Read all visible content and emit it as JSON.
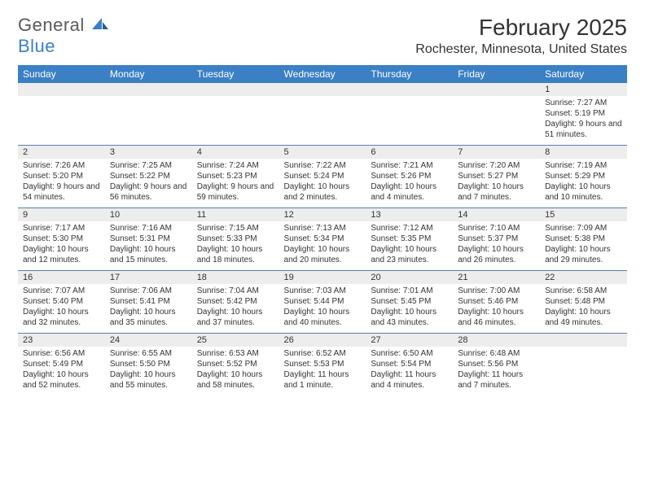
{
  "logo": {
    "text1": "General",
    "text2": "Blue"
  },
  "title": "February 2025",
  "location": "Rochester, Minnesota, United States",
  "weekdays": [
    "Sunday",
    "Monday",
    "Tuesday",
    "Wednesday",
    "Thursday",
    "Friday",
    "Saturday"
  ],
  "colors": {
    "header_bg": "#3b7fc4",
    "header_fg": "#ffffff",
    "daynum_bg": "#ededed",
    "row_border": "#5a7fa8",
    "text": "#333333",
    "logo_gray": "#5a5a5a",
    "logo_blue": "#3b7fc4"
  },
  "weeks": [
    [
      {
        "empty": true
      },
      {
        "empty": true
      },
      {
        "empty": true
      },
      {
        "empty": true
      },
      {
        "empty": true
      },
      {
        "empty": true
      },
      {
        "n": "1",
        "sunrise": "Sunrise: 7:27 AM",
        "sunset": "Sunset: 5:19 PM",
        "daylight": "Daylight: 9 hours and 51 minutes."
      }
    ],
    [
      {
        "n": "2",
        "sunrise": "Sunrise: 7:26 AM",
        "sunset": "Sunset: 5:20 PM",
        "daylight": "Daylight: 9 hours and 54 minutes."
      },
      {
        "n": "3",
        "sunrise": "Sunrise: 7:25 AM",
        "sunset": "Sunset: 5:22 PM",
        "daylight": "Daylight: 9 hours and 56 minutes."
      },
      {
        "n": "4",
        "sunrise": "Sunrise: 7:24 AM",
        "sunset": "Sunset: 5:23 PM",
        "daylight": "Daylight: 9 hours and 59 minutes."
      },
      {
        "n": "5",
        "sunrise": "Sunrise: 7:22 AM",
        "sunset": "Sunset: 5:24 PM",
        "daylight": "Daylight: 10 hours and 2 minutes."
      },
      {
        "n": "6",
        "sunrise": "Sunrise: 7:21 AM",
        "sunset": "Sunset: 5:26 PM",
        "daylight": "Daylight: 10 hours and 4 minutes."
      },
      {
        "n": "7",
        "sunrise": "Sunrise: 7:20 AM",
        "sunset": "Sunset: 5:27 PM",
        "daylight": "Daylight: 10 hours and 7 minutes."
      },
      {
        "n": "8",
        "sunrise": "Sunrise: 7:19 AM",
        "sunset": "Sunset: 5:29 PM",
        "daylight": "Daylight: 10 hours and 10 minutes."
      }
    ],
    [
      {
        "n": "9",
        "sunrise": "Sunrise: 7:17 AM",
        "sunset": "Sunset: 5:30 PM",
        "daylight": "Daylight: 10 hours and 12 minutes."
      },
      {
        "n": "10",
        "sunrise": "Sunrise: 7:16 AM",
        "sunset": "Sunset: 5:31 PM",
        "daylight": "Daylight: 10 hours and 15 minutes."
      },
      {
        "n": "11",
        "sunrise": "Sunrise: 7:15 AM",
        "sunset": "Sunset: 5:33 PM",
        "daylight": "Daylight: 10 hours and 18 minutes."
      },
      {
        "n": "12",
        "sunrise": "Sunrise: 7:13 AM",
        "sunset": "Sunset: 5:34 PM",
        "daylight": "Daylight: 10 hours and 20 minutes."
      },
      {
        "n": "13",
        "sunrise": "Sunrise: 7:12 AM",
        "sunset": "Sunset: 5:35 PM",
        "daylight": "Daylight: 10 hours and 23 minutes."
      },
      {
        "n": "14",
        "sunrise": "Sunrise: 7:10 AM",
        "sunset": "Sunset: 5:37 PM",
        "daylight": "Daylight: 10 hours and 26 minutes."
      },
      {
        "n": "15",
        "sunrise": "Sunrise: 7:09 AM",
        "sunset": "Sunset: 5:38 PM",
        "daylight": "Daylight: 10 hours and 29 minutes."
      }
    ],
    [
      {
        "n": "16",
        "sunrise": "Sunrise: 7:07 AM",
        "sunset": "Sunset: 5:40 PM",
        "daylight": "Daylight: 10 hours and 32 minutes."
      },
      {
        "n": "17",
        "sunrise": "Sunrise: 7:06 AM",
        "sunset": "Sunset: 5:41 PM",
        "daylight": "Daylight: 10 hours and 35 minutes."
      },
      {
        "n": "18",
        "sunrise": "Sunrise: 7:04 AM",
        "sunset": "Sunset: 5:42 PM",
        "daylight": "Daylight: 10 hours and 37 minutes."
      },
      {
        "n": "19",
        "sunrise": "Sunrise: 7:03 AM",
        "sunset": "Sunset: 5:44 PM",
        "daylight": "Daylight: 10 hours and 40 minutes."
      },
      {
        "n": "20",
        "sunrise": "Sunrise: 7:01 AM",
        "sunset": "Sunset: 5:45 PM",
        "daylight": "Daylight: 10 hours and 43 minutes."
      },
      {
        "n": "21",
        "sunrise": "Sunrise: 7:00 AM",
        "sunset": "Sunset: 5:46 PM",
        "daylight": "Daylight: 10 hours and 46 minutes."
      },
      {
        "n": "22",
        "sunrise": "Sunrise: 6:58 AM",
        "sunset": "Sunset: 5:48 PM",
        "daylight": "Daylight: 10 hours and 49 minutes."
      }
    ],
    [
      {
        "n": "23",
        "sunrise": "Sunrise: 6:56 AM",
        "sunset": "Sunset: 5:49 PM",
        "daylight": "Daylight: 10 hours and 52 minutes."
      },
      {
        "n": "24",
        "sunrise": "Sunrise: 6:55 AM",
        "sunset": "Sunset: 5:50 PM",
        "daylight": "Daylight: 10 hours and 55 minutes."
      },
      {
        "n": "25",
        "sunrise": "Sunrise: 6:53 AM",
        "sunset": "Sunset: 5:52 PM",
        "daylight": "Daylight: 10 hours and 58 minutes."
      },
      {
        "n": "26",
        "sunrise": "Sunrise: 6:52 AM",
        "sunset": "Sunset: 5:53 PM",
        "daylight": "Daylight: 11 hours and 1 minute."
      },
      {
        "n": "27",
        "sunrise": "Sunrise: 6:50 AM",
        "sunset": "Sunset: 5:54 PM",
        "daylight": "Daylight: 11 hours and 4 minutes."
      },
      {
        "n": "28",
        "sunrise": "Sunrise: 6:48 AM",
        "sunset": "Sunset: 5:56 PM",
        "daylight": "Daylight: 11 hours and 7 minutes."
      },
      {
        "empty": true
      }
    ]
  ]
}
